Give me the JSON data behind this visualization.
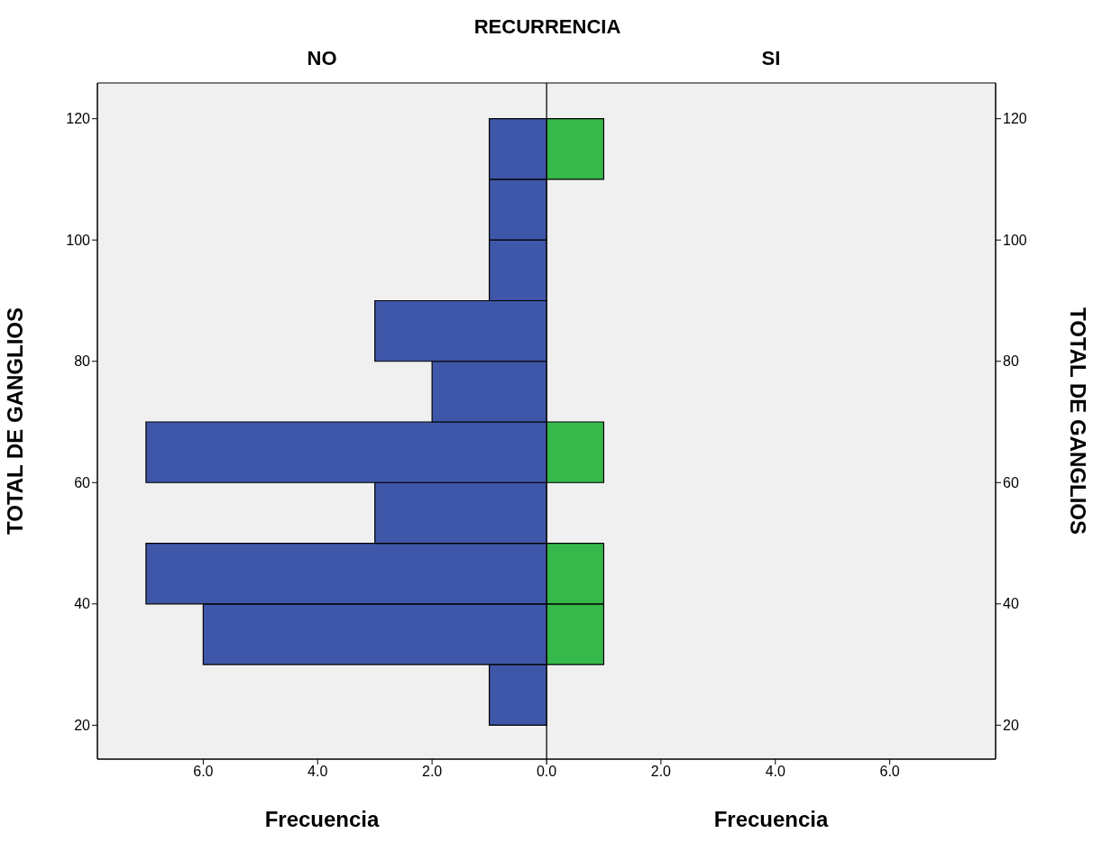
{
  "chart_data": [
    {
      "type": "histogram",
      "orientation": "horizontal",
      "title": "NO",
      "annotations": [
        "RECURRENCIA"
      ],
      "xlabel": "Frecuencia",
      "ylabel": "TOTAL DE GANGLIOS",
      "bins": [
        20,
        30,
        40,
        50,
        60,
        70,
        80,
        90,
        100,
        110,
        120
      ],
      "values": [
        1,
        6,
        7,
        3,
        7,
        2,
        3,
        1,
        1,
        1
      ],
      "color": "#3f57a8",
      "xlim": [
        7.85,
        0
      ],
      "xticks": [
        {
          "value": 6,
          "label": "6.0"
        },
        {
          "value": 4,
          "label": "4.0"
        },
        {
          "value": 2,
          "label": "2.0"
        },
        {
          "value": 0,
          "label": "0.0"
        }
      ],
      "ylim": [
        14.4,
        125.9
      ],
      "yticks": [
        20,
        40,
        60,
        80,
        100,
        120
      ],
      "grid": false
    },
    {
      "type": "histogram",
      "orientation": "horizontal",
      "title": "SI",
      "xlabel": "Frecuencia",
      "ylabel": "TOTAL DE GANGLIOS",
      "bins": [
        20,
        30,
        40,
        50,
        60,
        70,
        80,
        90,
        100,
        110,
        120
      ],
      "values": [
        0,
        1,
        1,
        0,
        1,
        0,
        0,
        0,
        0,
        1
      ],
      "color": "#36b84b",
      "xlim": [
        0,
        7.85
      ],
      "xticks": [
        {
          "value": 0,
          "label": null
        },
        {
          "value": 2,
          "label": "2.0"
        },
        {
          "value": 4,
          "label": "4.0"
        },
        {
          "value": 6,
          "label": "6.0"
        }
      ],
      "ylim": [
        14.4,
        125.9
      ],
      "yticks": [
        20,
        40,
        60,
        80,
        100,
        120
      ],
      "grid": false
    }
  ]
}
